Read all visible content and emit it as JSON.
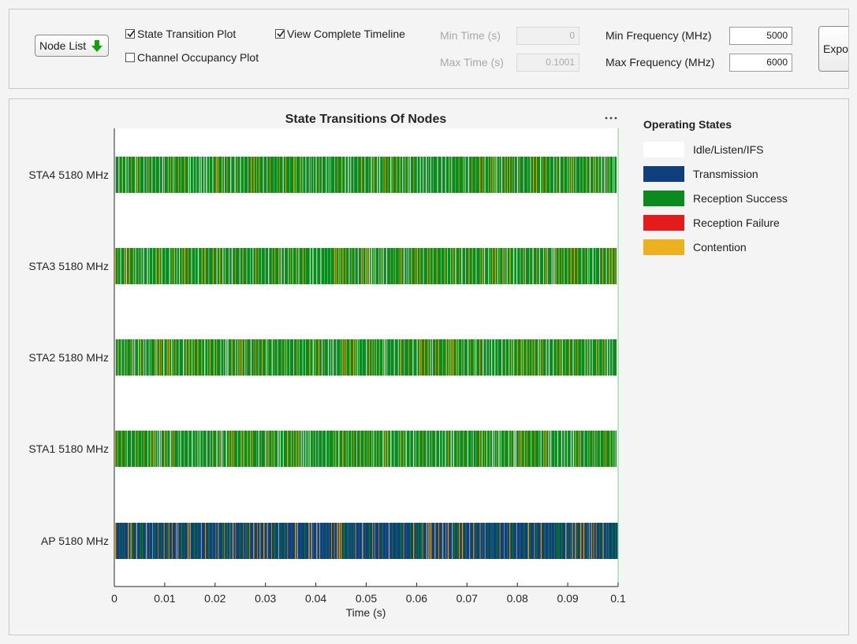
{
  "toolbar": {
    "node_list_label": "Node List",
    "state_transition_label": "State Transition Plot",
    "state_transition_checked": true,
    "view_timeline_label": "View Complete Timeline",
    "view_timeline_checked": true,
    "channel_occupancy_label": "Channel Occupancy Plot",
    "channel_occupancy_checked": false,
    "min_time_label": "Min Time (s)",
    "min_time_value": "0",
    "max_time_label": "Max Time (s)",
    "max_time_value": "0.1001",
    "min_freq_label": "Min Frequency (MHz)",
    "min_freq_value": "5000",
    "max_freq_label": "Max Frequency (MHz)",
    "max_freq_value": "6000",
    "export_label": "Export"
  },
  "menu_icon": "more-options-icon",
  "legend": {
    "title": "Operating States",
    "items": [
      {
        "label": "Idle/Listen/IFS",
        "color": "#ffffff"
      },
      {
        "label": "Transmission",
        "color": "#0f3f7c"
      },
      {
        "label": "Reception Success",
        "color": "#0a8a1f"
      },
      {
        "label": "Reception Failure",
        "color": "#e31b1b"
      },
      {
        "label": "Contention",
        "color": "#edb120"
      }
    ]
  },
  "chart_data": {
    "type": "state-timeline",
    "title": "State Transitions Of Nodes",
    "xlabel": "Time (s)",
    "xlim": [
      0,
      0.1
    ],
    "xticks": [
      "0",
      "0.01",
      "0.02",
      "0.03",
      "0.04",
      "0.05",
      "0.06",
      "0.07",
      "0.08",
      "0.09",
      "0.1"
    ],
    "rows": [
      {
        "label": "STA4 5180 MHz",
        "states": [
          "Reception Success",
          "Contention",
          "Idle/Listen/IFS"
        ],
        "end": 0.0997
      },
      {
        "label": "STA3 5180 MHz",
        "states": [
          "Reception Success",
          "Contention",
          "Idle/Listen/IFS"
        ],
        "end": 0.0997
      },
      {
        "label": "STA2 5180 MHz",
        "states": [
          "Reception Success",
          "Contention",
          "Idle/Listen/IFS"
        ],
        "end": 0.0997
      },
      {
        "label": "STA1 5180 MHz",
        "states": [
          "Reception Success",
          "Contention",
          "Idle/Listen/IFS"
        ],
        "end": 0.0997
      },
      {
        "label": "AP 5180 MHz",
        "states": [
          "Transmission",
          "Contention",
          "Reception Success"
        ],
        "end": 0.1001
      }
    ]
  }
}
